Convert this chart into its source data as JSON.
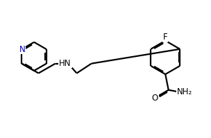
{
  "background_color": "#ffffff",
  "line_color": "#000000",
  "N_color": "#0000cd",
  "line_width": 1.6,
  "font_size": 8.5,
  "figsize": [
    3.04,
    1.99
  ],
  "dpi": 100,
  "xlim": [
    0,
    10
  ],
  "ylim": [
    0,
    6.5
  ]
}
